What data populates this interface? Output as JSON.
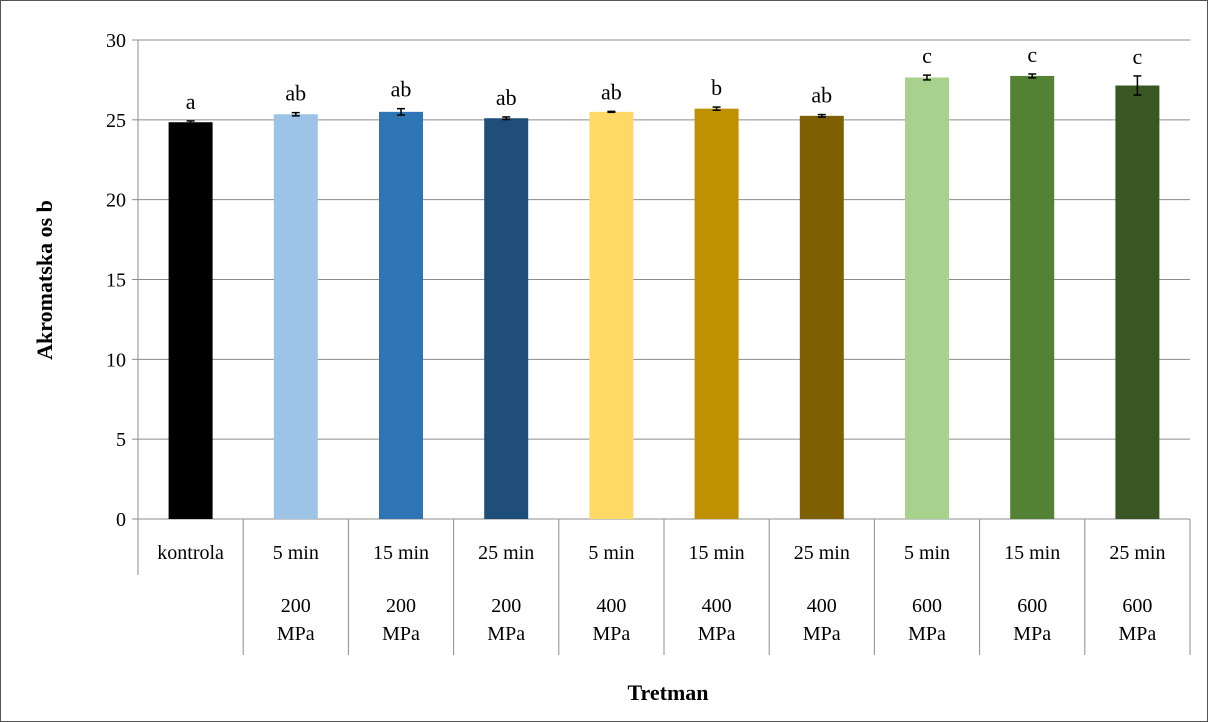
{
  "chart_data": {
    "type": "bar",
    "ylabel": "Akromatska os b",
    "xlabel": "Tretman",
    "ylim": [
      0,
      30
    ],
    "yticks": [
      0,
      5,
      10,
      15,
      20,
      25,
      30
    ],
    "grid": true,
    "legend": "none",
    "categories": [
      {
        "time": "kontrola",
        "pressure": ""
      },
      {
        "time": "5 min",
        "pressure": "200 MPa"
      },
      {
        "time": "15 min",
        "pressure": "200 MPa"
      },
      {
        "time": "25 min",
        "pressure": "200 MPa"
      },
      {
        "time": "5 min",
        "pressure": "400 MPa"
      },
      {
        "time": "15 min",
        "pressure": "400 MPa"
      },
      {
        "time": "25 min",
        "pressure": "400 MPa"
      },
      {
        "time": "5 min",
        "pressure": "600 MPa"
      },
      {
        "time": "15 min",
        "pressure": "600 MPa"
      },
      {
        "time": "25 min",
        "pressure": "600 MPa"
      }
    ],
    "values": [
      24.85,
      25.35,
      25.5,
      25.1,
      25.5,
      25.7,
      25.25,
      27.65,
      27.75,
      27.15
    ],
    "errors": [
      0.08,
      0.1,
      0.2,
      0.08,
      0.03,
      0.1,
      0.08,
      0.15,
      0.12,
      0.6
    ],
    "significance": [
      "a",
      "ab",
      "ab",
      "ab",
      "ab",
      "b",
      "ab",
      "c",
      "c",
      "c"
    ],
    "colors": [
      "#000000",
      "#9dc3e6",
      "#2e75b6",
      "#1f4e79",
      "#ffd966",
      "#bf9000",
      "#7f6000",
      "#a9d18e",
      "#548235",
      "#385723"
    ]
  }
}
